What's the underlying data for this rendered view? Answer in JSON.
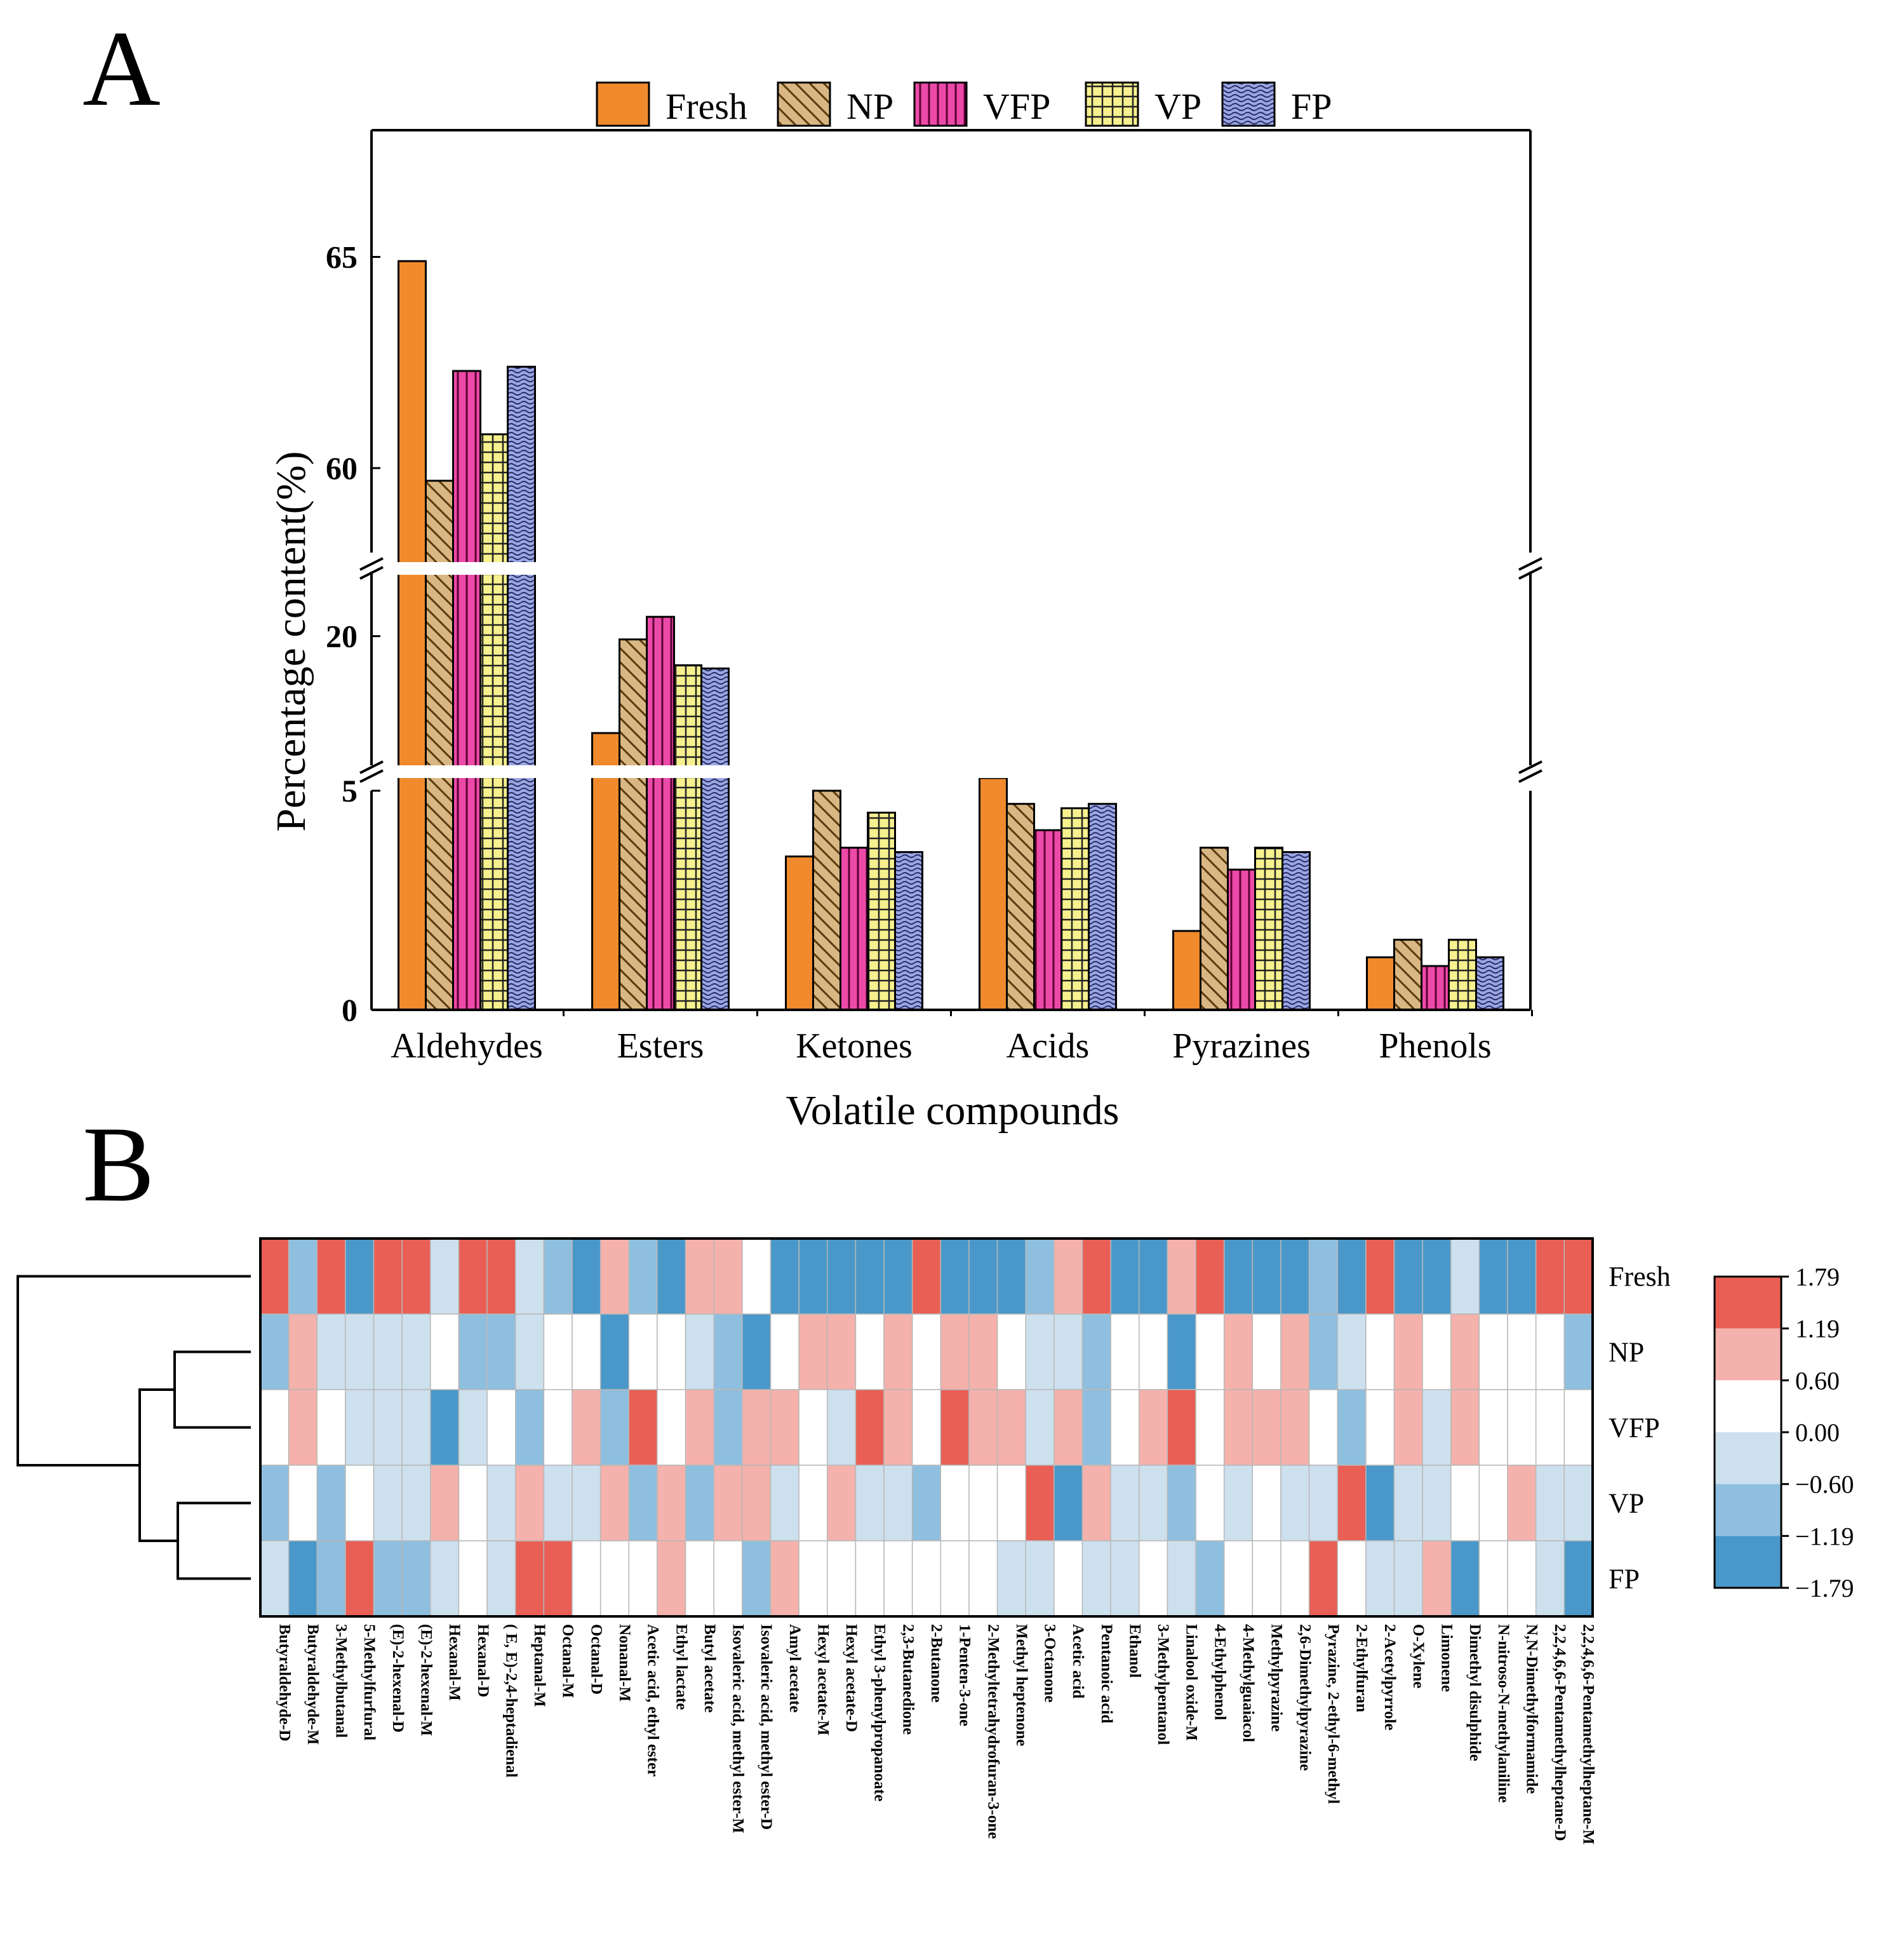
{
  "panels": {
    "a": "A",
    "b": "B"
  },
  "colors": {
    "Fresh": "#f08a2c",
    "NP": "#d9b783",
    "VFP": "#ec4aa8",
    "VP": "#f6f18e",
    "FP": "#98a7e4",
    "heat": [
      "#4a98c9",
      "#8fbfde",
      "#cde0ee",
      "#ffffff",
      "#f5b1ab",
      "#e95f55"
    ]
  },
  "chart_data": [
    {
      "type": "bar",
      "title": "",
      "xlabel": "Volatile compounds",
      "ylabel": "Percentage content(%)",
      "axis_breaks": [
        [
          5,
          16
        ],
        [
          22,
          58
        ]
      ],
      "ylim": [
        0,
        68
      ],
      "yticks": [
        0,
        5,
        20,
        60,
        65
      ],
      "ytick_labels": [
        "0",
        "5",
        "20",
        "60",
        "65"
      ],
      "categories": [
        "Aldehydes",
        "Esters",
        "Ketones",
        "Acids",
        "Pyrazines",
        "Phenols"
      ],
      "series": [
        {
          "name": "Fresh",
          "pattern": "solid",
          "values": [
            64.9,
            17.0,
            3.5,
            5.5,
            1.8,
            1.2
          ]
        },
        {
          "name": "NP",
          "pattern": "diagonal",
          "values": [
            59.7,
            19.9,
            5.0,
            4.7,
            3.7,
            1.6
          ]
        },
        {
          "name": "VFP",
          "pattern": "vertical",
          "values": [
            62.3,
            20.6,
            3.7,
            4.1,
            3.2,
            1.0
          ]
        },
        {
          "name": "VP",
          "pattern": "grid",
          "values": [
            60.8,
            19.1,
            4.5,
            4.6,
            3.7,
            1.6
          ]
        },
        {
          "name": "FP",
          "pattern": "wave",
          "values": [
            62.4,
            19.0,
            3.6,
            4.7,
            3.6,
            1.2
          ]
        }
      ]
    },
    {
      "type": "heatmap",
      "rows": [
        "Fresh",
        "NP",
        "VFP",
        "VP",
        "FP"
      ],
      "columns": [
        "Butyraldehyde-D",
        "Butyraldehyde-M",
        "3-Methylbutanal",
        "5-Methylfurfural",
        "(E)-2-hexenal-D",
        "(E)-2-hexenal-M",
        "Hexanal-M",
        "Hexanal-D",
        "( E, E)-2,4-heptadienal",
        "Heptanal-M",
        "Octanal-M",
        "Octanal-D",
        "Nonanal-M",
        "Acetic acid, ethyl ester",
        "Ethyl lactate",
        "Butyl acetate",
        "Isovaleric acid, methyl ester-M",
        "Isovaleric acid, methyl ester-D",
        "Amyl acetate",
        "Hexyl acetate-M",
        "Hexyl acetate-D",
        "Ethyl 3-phenylpropanoate",
        "2,3-Butanedione",
        "2-Butanone",
        "1-Penten-3-one",
        "2-Methyltetrahydrofuran-3-one",
        "Methyl heptenone",
        "3-Octanone",
        "Acetic acid",
        "Pentanoic acid",
        "Ethanol",
        "3-Methylpentanol",
        "Linalool oxide-M",
        "4-Ethylphenol",
        "4-Methylguaiacol",
        "Methylpyrazine",
        "2,6-Dimethylpyrazine",
        "Pyrazine, 2-ethyl-6-methyl",
        "2-Ethylfuran",
        "2-Acetylpyrrole",
        "O-Xylene",
        "Limonene",
        "Dimethyl disulphide",
        "N-nitroso-N-methylaniline",
        "N,N-Dimethylformamide",
        "2,2,4,6,6-Pentamethylheptane-D",
        "2,2,4,6,6-Pentamethylheptane-M"
      ],
      "values": [
        [
          2,
          -1,
          2,
          -2,
          2,
          2,
          -0.5,
          2,
          2,
          -0.5,
          -1,
          -2,
          1,
          -1,
          -2,
          1,
          1,
          0,
          -2,
          -2,
          -2,
          -2,
          -2,
          2,
          -2,
          -2,
          -2,
          -1,
          1,
          2,
          -2,
          -2,
          1,
          2,
          -2,
          -2,
          -2,
          -1,
          -2,
          2,
          -2,
          -2,
          -0.5,
          -2,
          -2,
          2,
          2
        ],
        [
          -1,
          1,
          -0.5,
          -0.5,
          -0.5,
          -0.5,
          0,
          -1,
          -1,
          -0.5,
          0,
          0,
          -2,
          0,
          0,
          -0.5,
          -1,
          -2,
          0,
          1,
          1,
          0,
          1,
          0,
          1,
          1,
          0,
          -0.5,
          -0.5,
          -1,
          0,
          0,
          -2,
          0,
          1,
          0,
          1,
          -1,
          -0.5,
          0,
          1,
          0,
          1,
          0,
          0,
          0,
          -1
        ],
        [
          0,
          1,
          0,
          -0.5,
          -0.5,
          -0.5,
          -2,
          -0.5,
          0,
          -1,
          0,
          1,
          -1,
          2,
          0,
          1,
          -1,
          1,
          1,
          0,
          -0.5,
          2,
          1,
          0,
          2,
          1,
          1,
          -0.5,
          1,
          -1,
          0,
          1,
          2,
          0,
          1,
          1,
          1,
          0,
          -1,
          0,
          1,
          -0.5,
          1,
          0,
          0,
          0,
          0
        ],
        [
          -1,
          0,
          -1,
          0,
          -0.5,
          -0.5,
          1,
          0,
          -0.5,
          1,
          -0.5,
          -0.5,
          1,
          -1,
          1,
          -1,
          1,
          1,
          -0.5,
          0,
          1,
          -0.5,
          -0.5,
          -1,
          0,
          0,
          0,
          2,
          -2,
          1,
          -0.5,
          -0.5,
          -1,
          0,
          -0.5,
          0,
          -0.5,
          -0.5,
          2,
          -2,
          -0.5,
          -0.5,
          0,
          0,
          1,
          -0.5,
          -0.5
        ],
        [
          -0.5,
          -2,
          -1,
          2,
          -1,
          -1,
          -0.5,
          0,
          -0.5,
          2,
          2,
          0,
          0,
          0,
          1,
          0,
          0,
          -1,
          1,
          0,
          0,
          0,
          0,
          0,
          0,
          0,
          -0.5,
          -0.5,
          0,
          -0.5,
          -0.5,
          0,
          -0.5,
          -1,
          0,
          0,
          0,
          2,
          0,
          -0.5,
          -0.5,
          1,
          -2,
          0,
          0,
          -0.5,
          -2
        ]
      ],
      "dendrogram": "Fresh separate; (NP, VFP) and (VP, FP) clusters",
      "colorbar": {
        "min": -1.79,
        "max": 1.79,
        "ticks": [
          "1.79",
          "1.19",
          "0.60",
          "0.00",
          "−0.60",
          "−1.19",
          "−1.79"
        ]
      }
    }
  ]
}
